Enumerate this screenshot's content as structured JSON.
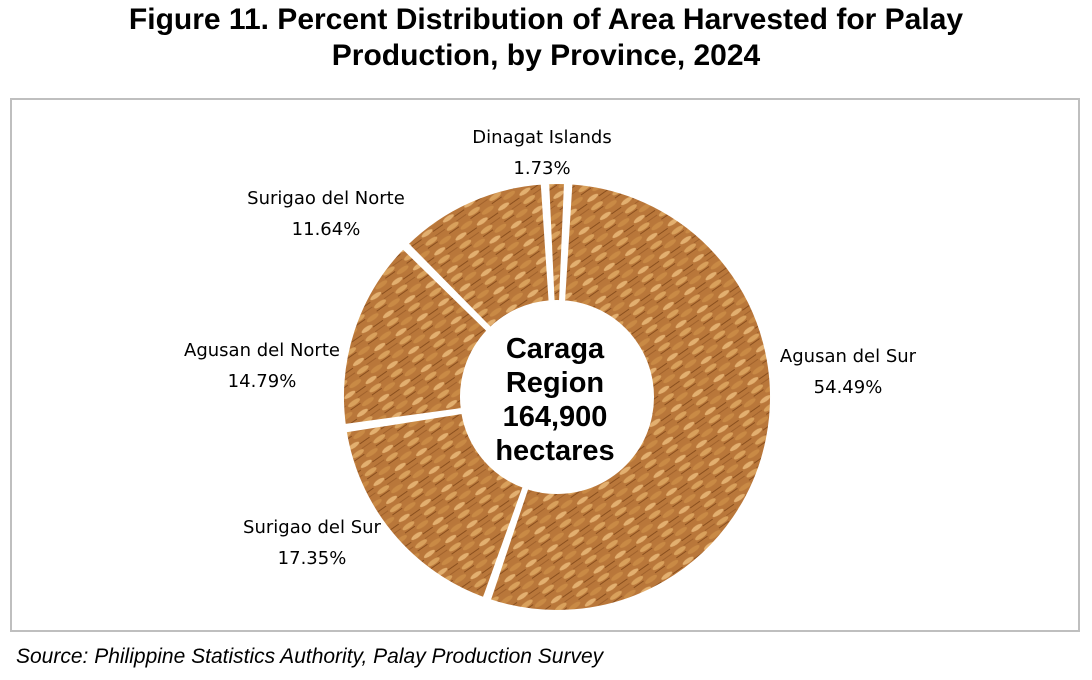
{
  "title_line1": "Figure 11. Percent Distribution of Area Harvested for Palay",
  "title_line2": "Production, by Province, 2024",
  "source": "Source: Philippine Statistics Authority, Palay Production Survey",
  "colors": {
    "grain_base": "#b9773a",
    "grain_dark": "#8a4f1e",
    "grain_light": "#e3b070",
    "frame": "#bfbfbf"
  },
  "chart_data": {
    "type": "pie",
    "variant": "donut",
    "title": "Figure 11. Percent Distribution of Area Harvested for Palay Production, by Province, 2024",
    "unit": "%",
    "center_label": [
      "Caraga",
      "Region",
      "164,900",
      "hectares"
    ],
    "slices": [
      {
        "name": "Agusan del Sur",
        "value": 54.49,
        "label": "54.49%"
      },
      {
        "name": "Surigao del Sur",
        "value": 17.35,
        "label": "17.35%"
      },
      {
        "name": "Agusan del Norte",
        "value": 14.79,
        "label": "14.79%"
      },
      {
        "name": "Surigao del Norte",
        "value": 11.64,
        "label": "11.64%"
      },
      {
        "name": "Dinagat Islands",
        "value": 1.73,
        "label": "1.73%"
      }
    ],
    "legend": "none"
  }
}
